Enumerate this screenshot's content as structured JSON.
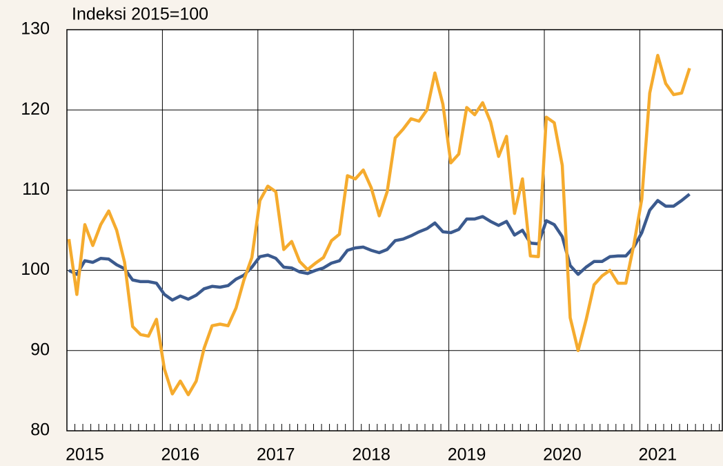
{
  "chart_data": {
    "type": "line",
    "title": "Indeksi 2015=100",
    "categories": [
      null,
      null,
      "2015",
      null,
      null,
      null,
      null,
      null,
      null,
      null,
      null,
      null,
      null,
      null,
      "2016",
      null,
      null,
      null,
      null,
      null,
      null,
      null,
      null,
      null,
      null,
      null,
      "2017",
      null,
      null,
      null,
      null,
      null,
      null,
      null,
      null,
      null,
      null,
      null,
      "2018",
      null,
      null,
      null,
      null,
      null,
      null,
      null,
      null,
      null,
      null,
      null,
      "2019",
      null,
      null,
      null,
      null,
      null,
      null,
      null,
      null,
      null,
      null,
      null,
      "2020",
      null,
      null,
      null,
      null,
      null,
      null,
      null,
      null,
      null,
      null,
      null,
      "2021",
      null,
      null,
      null,
      null
    ],
    "series": [
      {
        "color": "#3b5a8e",
        "values": [
          100,
          99.5,
          101.2,
          101,
          101.5,
          101.4,
          100.7,
          100.2,
          98.8,
          98.6,
          98.6,
          98.4,
          97,
          96.3,
          96.8,
          96.4,
          96.9,
          97.7,
          98,
          97.9,
          98.1,
          98.9,
          99.4,
          100.4,
          101.7,
          101.9,
          101.5,
          100.4,
          100.3,
          99.8,
          99.6,
          100,
          100.3,
          100.9,
          101.2,
          102.5,
          102.8,
          102.9,
          102.5,
          102.2,
          102.6,
          103.7,
          103.9,
          104.3,
          104.8,
          105.2,
          105.9,
          104.8,
          104.7,
          105.1,
          106.4,
          106.4,
          106.7,
          106.1,
          105.6,
          106.1,
          104.4,
          105,
          103.4,
          103.3,
          106.2,
          105.7,
          104.2,
          100.6,
          99.5,
          100.4,
          101.1,
          101.1,
          101.7,
          101.8,
          101.8,
          102.9,
          104.7,
          107.5,
          108.7,
          108,
          108,
          108.7,
          109.5
        ]
      },
      {
        "color": "#f5ab2e",
        "values": [
          103.9,
          97,
          105.7,
          103.1,
          105.7,
          107.4,
          105,
          101,
          93,
          92,
          91.8,
          93.9,
          87.7,
          84.6,
          86.2,
          84.5,
          86.2,
          90.3,
          93.1,
          93.3,
          93.1,
          95.3,
          98.8,
          101.6,
          108.7,
          110.5,
          109.8,
          102.6,
          103.6,
          101.1,
          100.1,
          100.9,
          101.6,
          103.7,
          104.5,
          111.8,
          111.4,
          112.5,
          110.3,
          106.8,
          109.8,
          116.5,
          117.6,
          118.9,
          118.6,
          120,
          124.6,
          120.7,
          113.4,
          114.5,
          120.3,
          119.4,
          120.9,
          118.5,
          114.2,
          116.7,
          107.1,
          111.4,
          101.8,
          101.7,
          119.1,
          118.4,
          113.1,
          94.1,
          90,
          93.8,
          98.2,
          99.3,
          100,
          98.4,
          98.4,
          103.2,
          108.9,
          122.1,
          126.8,
          123.3,
          121.9,
          122.1,
          125.2
        ]
      }
    ],
    "ylim": [
      80,
      130
    ],
    "yticks": [
      80,
      90,
      100,
      110,
      120,
      130
    ],
    "grid": true
  }
}
